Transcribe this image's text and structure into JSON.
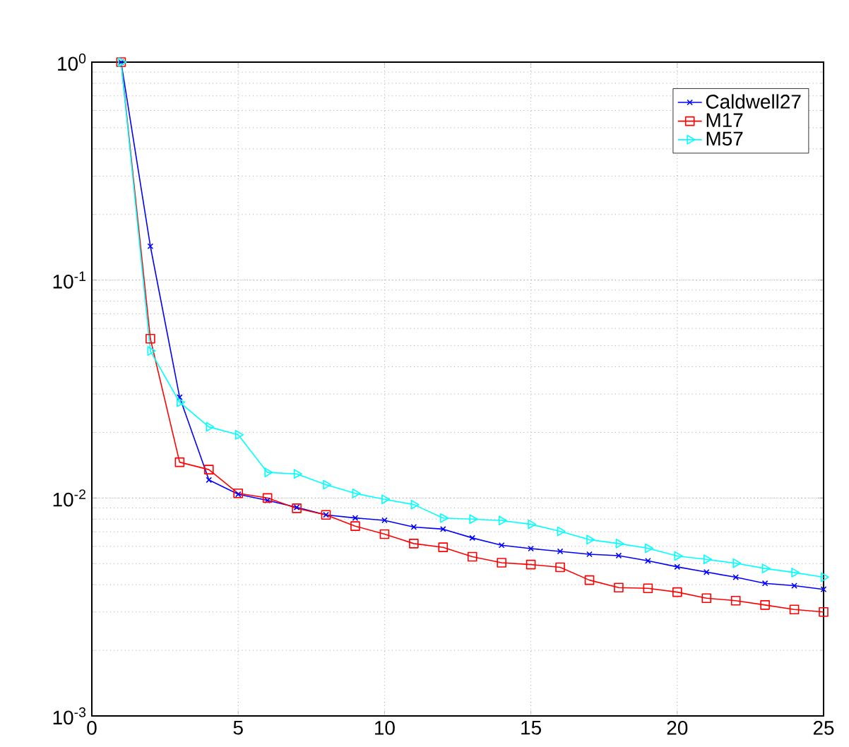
{
  "chart_data": {
    "type": "line",
    "log": "y",
    "grid": true,
    "legend": "top right",
    "x": [
      1,
      2,
      3,
      4,
      5,
      6,
      7,
      8,
      9,
      10,
      11,
      12,
      13,
      14,
      15,
      16,
      17,
      18,
      19,
      20,
      21,
      22,
      23,
      24,
      25
    ],
    "xlim": [
      0,
      25
    ],
    "xticks": [
      0,
      5,
      10,
      15,
      20,
      25
    ],
    "ylim": [
      0.001,
      1
    ],
    "yticks": [
      {
        "value": 0.001,
        "label": "10$^{-3}$"
      },
      {
        "value": 0.01,
        "label": "10$^{-2}$"
      },
      {
        "value": 0.1,
        "label": "10$^{-1}$"
      },
      {
        "value": 1,
        "label": "10$^{0}$"
      }
    ],
    "series": [
      {
        "name": "Caldwell27",
        "color": "#0000ff",
        "marker": "cross",
        "values": [
          1,
          0.143,
          0.029,
          0.0121,
          0.0104,
          0.00975,
          0.00906,
          0.00837,
          0.0081,
          0.0079,
          0.00736,
          0.0072,
          0.00656,
          0.00607,
          0.00586,
          0.00569,
          0.00552,
          0.00544,
          0.00515,
          0.00483,
          0.00457,
          0.00433,
          0.00406,
          0.00396,
          0.00381
        ]
      },
      {
        "name": "M17",
        "color": "#ff0000",
        "marker": "square",
        "values": [
          1,
          0.0538,
          0.0146,
          0.0135,
          0.0105,
          0.01,
          0.00897,
          0.00837,
          0.00743,
          0.00683,
          0.00618,
          0.00594,
          0.00538,
          0.00505,
          0.00495,
          0.00481,
          0.0042,
          0.00388,
          0.00385,
          0.0037,
          0.00347,
          0.00338,
          0.00323,
          0.00308,
          0.003
        ]
      },
      {
        "name": "M57",
        "color": "#00ffff",
        "marker": "triangle",
        "values": [
          1,
          0.0473,
          0.0275,
          0.0212,
          0.0195,
          0.0131,
          0.0129,
          0.0115,
          0.0105,
          0.00986,
          0.00933,
          0.00809,
          0.008,
          0.00788,
          0.00757,
          0.00703,
          0.00644,
          0.00618,
          0.00588,
          0.00542,
          0.00523,
          0.00502,
          0.00475,
          0.00455,
          0.00433
        ]
      }
    ]
  }
}
